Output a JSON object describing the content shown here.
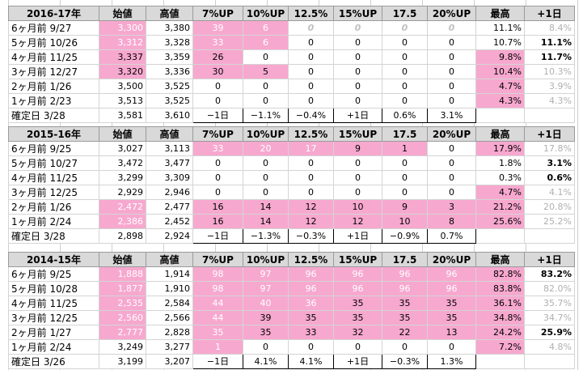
{
  "headers": [
    "始値",
    "高値",
    "7%UP",
    "10%UP",
    "12.5%",
    "15%UP",
    "17.5",
    "20%UP",
    "最高",
    "+1日"
  ],
  "blocks": [
    {
      "title": "2016-17年",
      "rows": [
        {
          "label": "6ヶ月前  9/27",
          "cells": [
            "3,300",
            "3,380",
            "39",
            "6",
            "0",
            "0",
            "0",
            "0",
            "11.1%",
            "8.4%"
          ]
        },
        {
          "label": "5ヶ月前  10/26",
          "cells": [
            "3,312",
            "3,328",
            "33",
            "6",
            "0",
            "0",
            "0",
            "0",
            "10.7%",
            "11.1%"
          ]
        },
        {
          "label": "4ヶ月前  11/25",
          "cells": [
            "3,337",
            "3,359",
            "26",
            "0",
            "0",
            "0",
            "0",
            "0",
            "9.8%",
            "11.7%"
          ]
        },
        {
          "label": "3ヶ月前  12/27",
          "cells": [
            "3,320",
            "3,336",
            "30",
            "5",
            "0",
            "0",
            "0",
            "0",
            "10.4%",
            "10.3%"
          ]
        },
        {
          "label": "2ヶ月前  1/26",
          "cells": [
            "3,500",
            "3,525",
            "0",
            "0",
            "0",
            "0",
            "0",
            "0",
            "4.7%",
            "3.9%"
          ]
        },
        {
          "label": "1ヶ月前  2/23",
          "cells": [
            "3,513",
            "3,525",
            "0",
            "0",
            "0",
            "0",
            "0",
            "0",
            "4.3%",
            "4.3%"
          ]
        },
        {
          "label": "確定日  3/28",
          "cells": [
            "3,581",
            "3,610",
            "−1日",
            "−1.1%",
            "−0.4%",
            "+1日",
            "0.6%",
            "3.1%",
            "",
            ""
          ]
        }
      ]
    },
    {
      "title": "2015-16年",
      "rows": [
        {
          "label": "6ヶ月前  9/25",
          "cells": [
            "3,027",
            "3,113",
            "33",
            "20",
            "17",
            "9",
            "1",
            "0",
            "17.9%",
            "17.8%"
          ]
        },
        {
          "label": "5ヶ月前  10/27",
          "cells": [
            "3,472",
            "3,477",
            "0",
            "0",
            "0",
            "0",
            "0",
            "0",
            "1.8%",
            "3.1%"
          ]
        },
        {
          "label": "4ヶ月前  11/25",
          "cells": [
            "3,299",
            "3,309",
            "0",
            "0",
            "0",
            "0",
            "0",
            "0",
            "0.3%",
            "0.6%"
          ]
        },
        {
          "label": "3ヶ月前  12/25",
          "cells": [
            "2,929",
            "2,946",
            "0",
            "0",
            "0",
            "0",
            "0",
            "0",
            "4.7%",
            "4.1%"
          ]
        },
        {
          "label": "2ヶ月前  1/26",
          "cells": [
            "2,472",
            "2,477",
            "16",
            "14",
            "12",
            "10",
            "9",
            "3",
            "21.2%",
            "20.8%"
          ]
        },
        {
          "label": "1ヶ月前  2/24",
          "cells": [
            "2,386",
            "2,452",
            "16",
            "14",
            "12",
            "12",
            "10",
            "8",
            "25.6%",
            "25.2%"
          ]
        },
        {
          "label": "確定日  3/28",
          "cells": [
            "2,898",
            "2,924",
            "−1日",
            "−1.3%",
            "−0.3%",
            "+1日",
            "−0.9%",
            "0.7%",
            "",
            ""
          ]
        }
      ]
    },
    {
      "title": "2014-15年",
      "rows": [
        {
          "label": "6ヶ月前  9/25",
          "cells": [
            "1,888",
            "1,914",
            "98",
            "97",
            "96",
            "96",
            "96",
            "96",
            "82.8%",
            "83.2%"
          ]
        },
        {
          "label": "5ヶ月前  10/28",
          "cells": [
            "1,877",
            "1,910",
            "98",
            "97",
            "96",
            "96",
            "96",
            "96",
            "83.8%",
            "82.0%"
          ]
        },
        {
          "label": "4ヶ月前  11/25",
          "cells": [
            "2,535",
            "2,584",
            "44",
            "40",
            "36",
            "35",
            "35",
            "35",
            "36.1%",
            "35.7%"
          ]
        },
        {
          "label": "3ヶ月前  12/25",
          "cells": [
            "2,560",
            "2,566",
            "44",
            "39",
            "35",
            "35",
            "35",
            "35",
            "34.8%",
            "34.7%"
          ]
        },
        {
          "label": "2ヶ月前  1/27",
          "cells": [
            "2,777",
            "2,828",
            "35",
            "35",
            "33",
            "32",
            "22",
            "13",
            "24.2%",
            "25.9%"
          ]
        },
        {
          "label": "1ヶ月前  2/24",
          "cells": [
            "3,249",
            "3,277",
            "1",
            "0",
            "0",
            "0",
            "0",
            "0",
            "7.2%",
            "4.8%"
          ]
        },
        {
          "label": "確定日  3/26",
          "cells": [
            "3,199",
            "3,207",
            "−1日",
            "4.1%",
            "4.1%",
            "+1日",
            "−0.3%",
            "1.3%",
            "",
            ""
          ]
        }
      ]
    }
  ],
  "styles": [
    [
      [
        "n",
        "pw",
        "n",
        "pw",
        "pw",
        "zi",
        "zi",
        "zi",
        "zi",
        "n",
        "grey"
      ],
      [
        "n",
        "pw",
        "n",
        "pw",
        "pw",
        "n",
        "n",
        "n",
        "n",
        "n",
        "bold"
      ],
      [
        "n",
        "pd",
        "n",
        "pd",
        "w",
        "n",
        "n",
        "n",
        "n",
        "pd",
        "bold"
      ],
      [
        "n",
        "pd",
        "n",
        "pd",
        "pd",
        "n",
        "n",
        "n",
        "n",
        "pd",
        "grey"
      ],
      [
        "n",
        "n",
        "n",
        "n",
        "n",
        "n",
        "n",
        "n",
        "n",
        "pd",
        "grey"
      ],
      [
        "n",
        "n",
        "n",
        "n",
        "n",
        "n",
        "n",
        "n",
        "n",
        "pd",
        "grey"
      ],
      [
        "n",
        "n",
        "n",
        "box",
        "box",
        "box",
        "box",
        "box",
        "box",
        "n",
        "n"
      ]
    ],
    [
      [
        "n",
        "n",
        "n",
        "pw",
        "pw",
        "pw",
        "pd",
        "pd",
        "n",
        "pd",
        "grey"
      ],
      [
        "n",
        "n",
        "n",
        "n",
        "n",
        "n",
        "n",
        "n",
        "n",
        "n",
        "bold"
      ],
      [
        "n",
        "n",
        "n",
        "n",
        "n",
        "n",
        "n",
        "n",
        "n",
        "n",
        "bold"
      ],
      [
        "n",
        "n",
        "n",
        "n",
        "n",
        "n",
        "n",
        "n",
        "n",
        "pd",
        "grey"
      ],
      [
        "n",
        "pw",
        "n",
        "pd",
        "pd",
        "pd",
        "pd",
        "pd",
        "pd",
        "pd",
        "grey"
      ],
      [
        "n",
        "pw",
        "n",
        "pd",
        "pd",
        "pd",
        "pd",
        "pd",
        "pd",
        "pd",
        "grey"
      ],
      [
        "n",
        "n",
        "n",
        "box",
        "box",
        "box",
        "box",
        "box",
        "box",
        "n",
        "n"
      ]
    ],
    [
      [
        "n",
        "pw",
        "n",
        "pw",
        "pw",
        "pw",
        "pw",
        "pw",
        "pw",
        "pd",
        "bold"
      ],
      [
        "n",
        "pw",
        "n",
        "pw",
        "pw",
        "pw",
        "pw",
        "pw",
        "pw",
        "pd",
        "grey"
      ],
      [
        "n",
        "pw",
        "n",
        "pw",
        "pw",
        "pw",
        "pd",
        "pd",
        "pd",
        "pd",
        "grey"
      ],
      [
        "n",
        "pw",
        "n",
        "pw",
        "pd",
        "pd",
        "pd",
        "pd",
        "pd",
        "pd",
        "grey"
      ],
      [
        "n",
        "pw",
        "n",
        "pw",
        "pd",
        "pd",
        "pd",
        "pd",
        "pd",
        "pd",
        "bold"
      ],
      [
        "n",
        "n",
        "n",
        "pw",
        "n",
        "n",
        "n",
        "n",
        "n",
        "pd",
        "grey"
      ],
      [
        "n",
        "n",
        "n",
        "box",
        "box",
        "box",
        "box",
        "box",
        "box",
        "n",
        "n"
      ]
    ]
  ]
}
